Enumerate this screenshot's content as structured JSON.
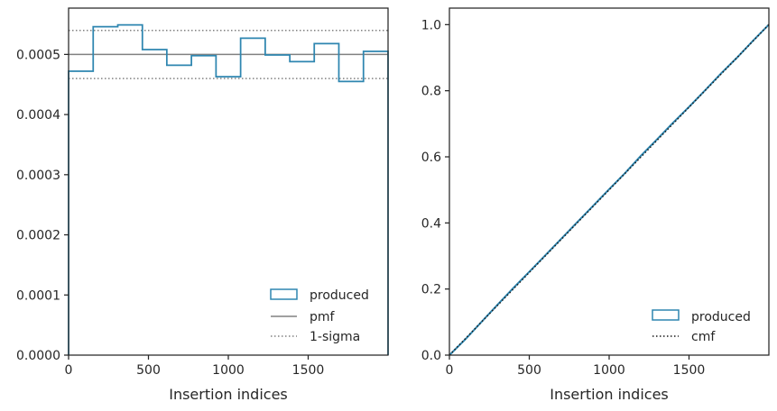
{
  "colors": {
    "produced": "#2e86b0",
    "pmf": "#808080",
    "sigma": "#808080",
    "cmf": "#1a1a1a",
    "axes": "#262626"
  },
  "chart_data": [
    {
      "type": "histogram-step",
      "xlabel": "Insertion indices",
      "ylabel": "",
      "xlim": [
        0,
        2000
      ],
      "ylim": [
        0,
        0.000577
      ],
      "x_ticks": [
        0,
        500,
        1000,
        1500
      ],
      "x_tick_labels": [
        "0",
        "500",
        "1000",
        "1500"
      ],
      "y_ticks": [
        0,
        0.0001,
        0.0002,
        0.0003,
        0.0004,
        0.0005
      ],
      "y_tick_labels": [
        "0.0000",
        "0.0001",
        "0.0002",
        "0.0003",
        "0.0004",
        "0.0005"
      ],
      "bin_edges": [
        0,
        154,
        308,
        462,
        615,
        769,
        923,
        1077,
        1231,
        1385,
        1538,
        1692,
        1846,
        2000
      ],
      "series": [
        {
          "name": "produced",
          "values": [
            0.000472,
            0.000546,
            0.000549,
            0.000508,
            0.000482,
            0.000498,
            0.000463,
            0.000527,
            0.000499,
            0.000488,
            0.000518,
            0.000455,
            0.000505
          ]
        }
      ],
      "reference_lines": [
        {
          "name": "pmf",
          "style": "solid",
          "y": 0.0005
        },
        {
          "name": "1-sigma",
          "style": "dotted",
          "y": [
            0.00046,
            0.00054
          ]
        }
      ],
      "legend": {
        "position": "lower-right",
        "entries": [
          "produced",
          "pmf",
          "1-sigma"
        ]
      }
    },
    {
      "type": "line",
      "xlabel": "Insertion indices",
      "ylabel": "",
      "xlim": [
        0,
        2000
      ],
      "ylim": [
        0,
        1.05
      ],
      "x_ticks": [
        0,
        500,
        1000,
        1500
      ],
      "x_tick_labels": [
        "0",
        "500",
        "1000",
        "1500"
      ],
      "y_ticks": [
        0,
        0.2,
        0.4,
        0.6,
        0.8,
        1.0
      ],
      "y_tick_labels": [
        "0.0",
        "0.2",
        "0.4",
        "0.6",
        "0.8",
        "1.0"
      ],
      "series": [
        {
          "name": "produced",
          "style": "solid",
          "x": [
            0,
            100,
            200,
            300,
            400,
            500,
            600,
            700,
            800,
            900,
            1000,
            1100,
            1200,
            1300,
            1400,
            1500,
            1600,
            1700,
            1800,
            1900,
            2000
          ],
          "y": [
            0,
            0.048,
            0.1,
            0.152,
            0.203,
            0.252,
            0.302,
            0.352,
            0.402,
            0.452,
            0.502,
            0.551,
            0.604,
            0.653,
            0.703,
            0.751,
            0.801,
            0.852,
            0.9,
            0.951,
            1.0
          ]
        },
        {
          "name": "cmf",
          "style": "dotted",
          "x": [
            0,
            2000
          ],
          "y": [
            0,
            1.0
          ]
        }
      ],
      "legend": {
        "position": "lower-right",
        "entries": [
          "produced",
          "cmf"
        ]
      }
    }
  ]
}
